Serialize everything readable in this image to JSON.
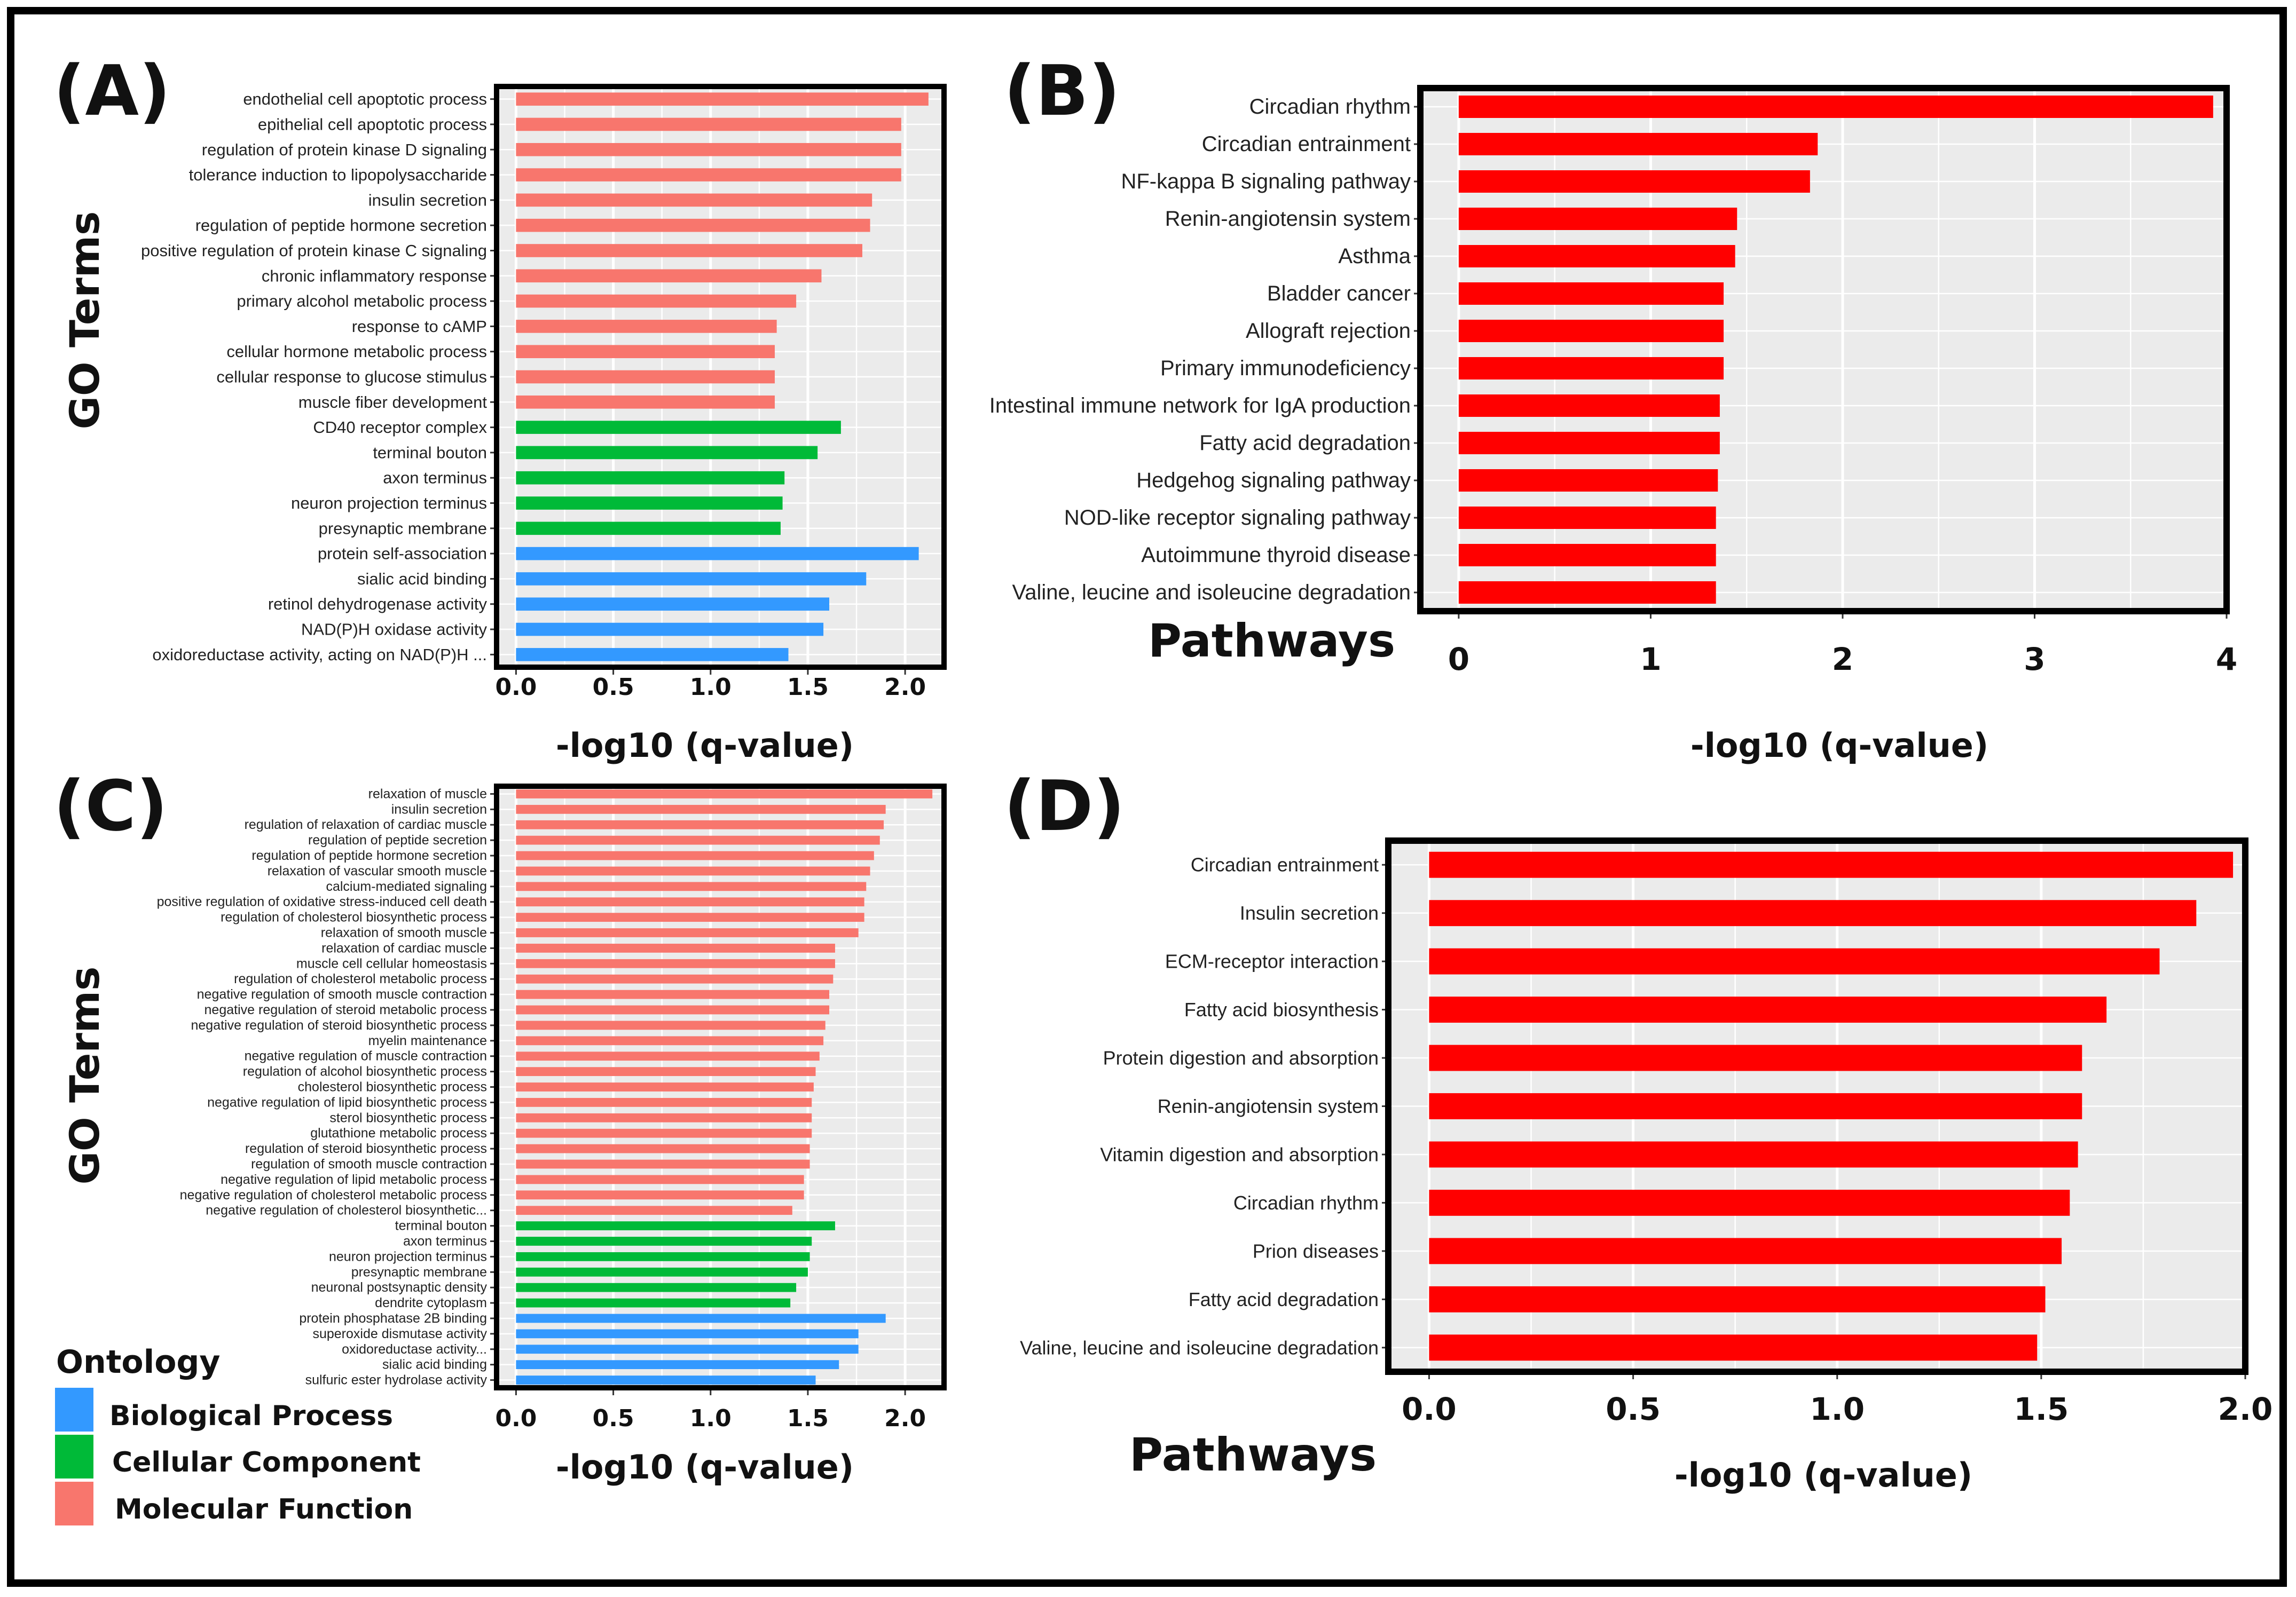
{
  "colors": {
    "molecular_function": "#f8766d",
    "cellular_component": "#00ba38",
    "biological_process": "#3399ff",
    "pathway_bar": "#ff0000",
    "panel_bg": "#ebebeb"
  },
  "legend": {
    "title": "Ontology",
    "items": [
      {
        "label": "Biological Process",
        "color": "#3399ff"
      },
      {
        "label": "Cellular Component",
        "color": "#00ba38"
      },
      {
        "label": "Molecular Function",
        "color": "#f8766d"
      }
    ]
  },
  "chart_data": [
    {
      "panel": "(A)",
      "type": "bar",
      "orientation": "horizontal",
      "ylabel": "GO Terms",
      "xlabel": "-log10 (q-value)",
      "xlim": [
        -0.1,
        2.2
      ],
      "xticks": [
        0.0,
        0.5,
        1.0,
        1.5,
        2.0
      ],
      "xtick_labels": [
        "0.0",
        "0.5",
        "1.0",
        "1.5",
        "2.0"
      ],
      "categories": [
        "endothelial cell apoptotic process",
        "epithelial cell apoptotic process",
        "regulation of protein kinase D signaling",
        "tolerance induction to lipopolysaccharide",
        "insulin secretion",
        "regulation of peptide hormone secretion",
        "positive regulation of protein kinase C signaling",
        "chronic inflammatory response",
        "primary alcohol metabolic process",
        "response to cAMP",
        "cellular hormone metabolic process",
        "cellular response to glucose stimulus",
        "muscle fiber development",
        "CD40 receptor complex",
        "terminal bouton",
        "axon terminus",
        "neuron projection terminus",
        "presynaptic membrane",
        "protein self-association",
        "sialic acid binding",
        "retinol dehydrogenase activity",
        "NAD(P)H oxidase activity",
        "oxidoreductase activity, acting on NAD(P)H ..."
      ],
      "values": [
        2.12,
        1.98,
        1.98,
        1.98,
        1.83,
        1.82,
        1.78,
        1.57,
        1.44,
        1.34,
        1.33,
        1.33,
        1.33,
        1.67,
        1.55,
        1.38,
        1.37,
        1.36,
        2.07,
        1.8,
        1.61,
        1.58,
        1.4
      ],
      "groups": [
        "MF",
        "MF",
        "MF",
        "MF",
        "MF",
        "MF",
        "MF",
        "MF",
        "MF",
        "MF",
        "MF",
        "MF",
        "MF",
        "CC",
        "CC",
        "CC",
        "CC",
        "CC",
        "BP",
        "BP",
        "BP",
        "BP",
        "BP"
      ]
    },
    {
      "panel": "(B)",
      "type": "bar",
      "orientation": "horizontal",
      "ylabel": "Pathways",
      "xlabel": "-log10 (q-value)",
      "xlim": [
        -0.2,
        4.0
      ],
      "xticks": [
        0,
        1,
        2,
        3,
        4
      ],
      "xtick_labels": [
        "0",
        "1",
        "2",
        "3",
        "4"
      ],
      "categories": [
        "Circadian rhythm",
        "Circadian entrainment",
        "NF-kappa B signaling pathway",
        "Renin-angiotensin system",
        "Asthma",
        "Bladder cancer",
        "Allograft rejection",
        "Primary immunodeficiency",
        "Intestinal immune network for IgA production",
        "Fatty acid degradation",
        "Hedgehog signaling pathway",
        "NOD-like receptor signaling pathway",
        "Autoimmune thyroid disease",
        "Valine, leucine and isoleucine degradation"
      ],
      "values": [
        3.93,
        1.87,
        1.83,
        1.45,
        1.44,
        1.38,
        1.38,
        1.38,
        1.36,
        1.36,
        1.35,
        1.34,
        1.34,
        1.34
      ]
    },
    {
      "panel": "(C)",
      "type": "bar",
      "orientation": "horizontal",
      "ylabel": "GO Terms",
      "xlabel": "-log10 (q-value)",
      "xlim": [
        -0.1,
        2.2
      ],
      "xticks": [
        0.0,
        0.5,
        1.0,
        1.5,
        2.0
      ],
      "xtick_labels": [
        "0.0",
        "0.5",
        "1.0",
        "1.5",
        "2.0"
      ],
      "categories": [
        "relaxation of muscle",
        "insulin secretion",
        "regulation of relaxation of cardiac muscle",
        "regulation of peptide secretion",
        "regulation of peptide hormone secretion",
        "relaxation of vascular smooth muscle",
        "calcium-mediated signaling",
        "positive regulation of oxidative stress-induced cell death",
        "regulation of cholesterol biosynthetic process",
        "relaxation of smooth muscle",
        "relaxation of cardiac muscle",
        "muscle cell cellular homeostasis",
        "regulation of cholesterol metabolic process",
        "negative regulation of smooth muscle contraction",
        "negative regulation of steroid metabolic process",
        "negative regulation of steroid biosynthetic process",
        "myelin maintenance",
        "negative regulation of muscle contraction",
        "regulation of alcohol biosynthetic process",
        "cholesterol biosynthetic process",
        "negative regulation of lipid biosynthetic process",
        "sterol biosynthetic process",
        "glutathione metabolic process",
        "regulation of steroid biosynthetic process",
        "regulation of smooth muscle contraction",
        "negative regulation of lipid metabolic process",
        "negative regulation of cholesterol metabolic process",
        "negative regulation of cholesterol biosynthetic...",
        "terminal bouton",
        "axon terminus",
        "neuron projection terminus",
        "presynaptic membrane",
        "neuronal postsynaptic density",
        "dendrite cytoplasm",
        "protein phosphatase 2B binding",
        "superoxide dismutase activity",
        "oxidoreductase activity...",
        "sialic acid binding",
        "sulfuric ester hydrolase activity"
      ],
      "values": [
        2.14,
        1.9,
        1.89,
        1.87,
        1.84,
        1.82,
        1.8,
        1.79,
        1.79,
        1.76,
        1.64,
        1.64,
        1.63,
        1.61,
        1.61,
        1.59,
        1.58,
        1.56,
        1.54,
        1.53,
        1.52,
        1.52,
        1.52,
        1.51,
        1.51,
        1.48,
        1.48,
        1.42,
        1.64,
        1.52,
        1.51,
        1.5,
        1.44,
        1.41,
        1.9,
        1.76,
        1.76,
        1.66,
        1.54
      ],
      "groups": [
        "MF",
        "MF",
        "MF",
        "MF",
        "MF",
        "MF",
        "MF",
        "MF",
        "MF",
        "MF",
        "MF",
        "MF",
        "MF",
        "MF",
        "MF",
        "MF",
        "MF",
        "MF",
        "MF",
        "MF",
        "MF",
        "MF",
        "MF",
        "MF",
        "MF",
        "MF",
        "MF",
        "MF",
        "CC",
        "CC",
        "CC",
        "CC",
        "CC",
        "CC",
        "BP",
        "BP",
        "BP",
        "BP",
        "BP"
      ]
    },
    {
      "panel": "(D)",
      "type": "bar",
      "orientation": "horizontal",
      "ylabel": "Pathways",
      "xlabel": "-log10 (q-value)",
      "xlim": [
        -0.1,
        2.0
      ],
      "xticks": [
        0.0,
        0.5,
        1.0,
        1.5,
        2.0
      ],
      "xtick_labels": [
        "0.0",
        "0.5",
        "1.0",
        "1.5",
        "2.0"
      ],
      "categories": [
        "Circadian entrainment",
        "Insulin secretion",
        "ECM-receptor interaction",
        "Fatty acid biosynthesis",
        "Protein digestion and absorption",
        "Renin-angiotensin system",
        "Vitamin digestion and absorption",
        "Circadian rhythm",
        "Prion diseases",
        "Fatty acid degradation",
        "Valine, leucine and isoleucine degradation"
      ],
      "values": [
        1.97,
        1.88,
        1.79,
        1.66,
        1.6,
        1.6,
        1.59,
        1.57,
        1.55,
        1.51,
        1.49
      ]
    }
  ]
}
